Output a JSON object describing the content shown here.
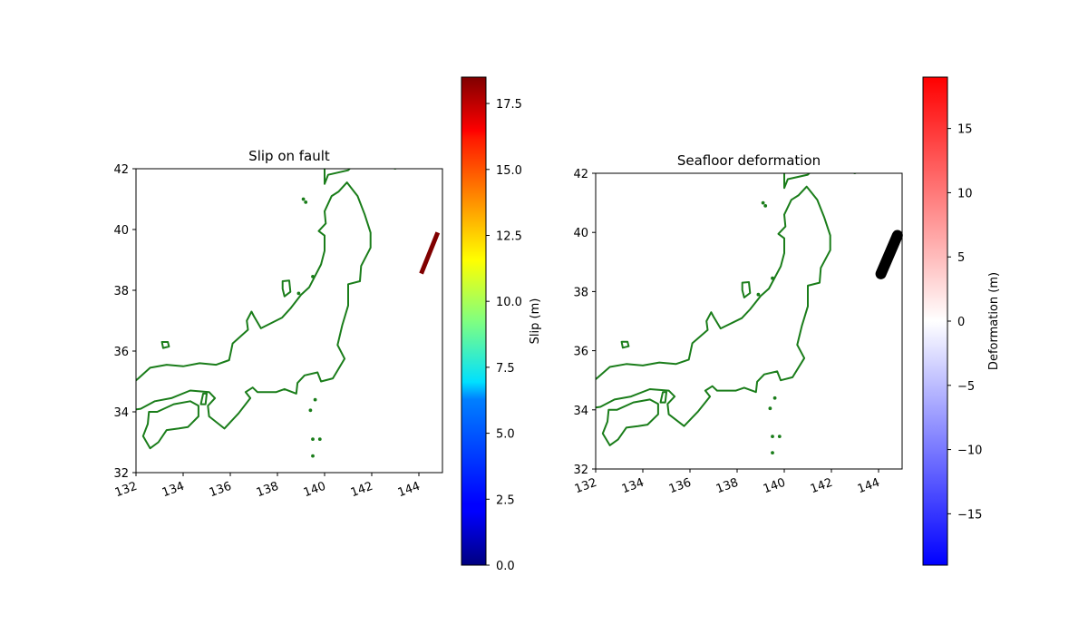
{
  "chart_data": [
    {
      "type": "map",
      "title": "Slip on fault",
      "xlim": [
        132,
        145
      ],
      "ylim": [
        32,
        42
      ],
      "x_ticks": [
        132,
        134,
        136,
        138,
        140,
        142,
        144
      ],
      "y_ticks": [
        32,
        34,
        36,
        38,
        40,
        42
      ],
      "coastline_color": "#1a7d1a",
      "fault": {
        "lon_start": 144.1,
        "lat_start": 38.55,
        "lon_end": 144.8,
        "lat_end": 39.9,
        "slip_m": 18.5,
        "color": "#800000"
      },
      "colorbar": {
        "label": "Slip (m)",
        "colormap": "jet",
        "range": [
          0,
          18.5
        ],
        "ticks": [
          0.0,
          2.5,
          5.0,
          7.5,
          10.0,
          12.5,
          15.0,
          17.5
        ],
        "tick_labels": [
          "0.0",
          "2.5",
          "5.0",
          "7.5",
          "10.0",
          "12.5",
          "15.0",
          "17.5"
        ]
      }
    },
    {
      "type": "map",
      "title": "Seafloor deformation",
      "xlim": [
        132,
        145
      ],
      "ylim": [
        32,
        42
      ],
      "x_ticks": [
        132,
        134,
        136,
        138,
        140,
        142,
        144
      ],
      "y_ticks": [
        32,
        34,
        36,
        38,
        40,
        42
      ],
      "coastline_color": "#1a7d1a",
      "fault": {
        "lon_start": 144.1,
        "lat_start": 38.6,
        "lon_end": 144.8,
        "lat_end": 39.9,
        "color": "#000000"
      },
      "colorbar": {
        "label": "Deformation (m)",
        "colormap": "bwr",
        "range": [
          -19,
          19
        ],
        "ticks": [
          -15,
          -10,
          -5,
          0,
          5,
          10,
          15
        ],
        "tick_labels": [
          "−15",
          "−10",
          "−5",
          "0",
          "5",
          "10",
          "15"
        ]
      }
    }
  ]
}
